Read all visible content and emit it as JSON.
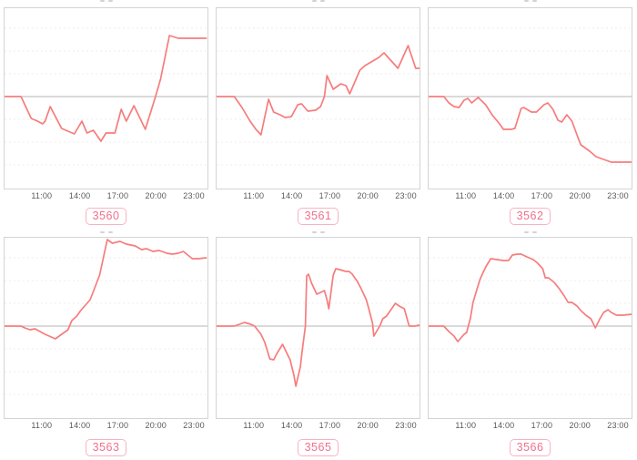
{
  "page": {
    "background": "#ffffff"
  },
  "colors": {
    "line": "#f77c7c",
    "zero_line": "#b5b5b5",
    "grid_line": "#ededed",
    "plot_border": "#d4d4d4",
    "tick_text": "#595959",
    "badge_text": "#f0708c",
    "badge_border": "#f8b3c3"
  },
  "axis": {
    "x_tick_labels": [
      "11:00",
      "14:00",
      "17:00",
      "20:00",
      "23:00"
    ],
    "x_range_hours": [
      8,
      24
    ],
    "y_axis": "unlabeled, zero baseline line shown, values in relative units"
  },
  "chart_data": [
    {
      "type": "line",
      "label": "3560",
      "x_tick_labels": [
        "11:00",
        "14:00",
        "17:00",
        "20:00",
        "23:00"
      ],
      "x_range_hours": [
        8,
        24
      ],
      "baseline": 0,
      "y_unit": "relative (axis unlabeled)",
      "points": [
        [
          8.0,
          0
        ],
        [
          9.3,
          0
        ],
        [
          10.1,
          -24
        ],
        [
          10.6,
          -27
        ],
        [
          11.0,
          -30
        ],
        [
          11.2,
          -27
        ],
        [
          11.6,
          -11
        ],
        [
          12.5,
          -35
        ],
        [
          13.0,
          -38
        ],
        [
          13.5,
          -41
        ],
        [
          14.1,
          -27
        ],
        [
          14.5,
          -40
        ],
        [
          15.0,
          -37
        ],
        [
          15.6,
          -49
        ],
        [
          16.0,
          -40
        ],
        [
          16.7,
          -40
        ],
        [
          17.2,
          -14
        ],
        [
          17.6,
          -27
        ],
        [
          18.2,
          -10
        ],
        [
          19.1,
          -36
        ],
        [
          19.9,
          0
        ],
        [
          20.3,
          19
        ],
        [
          21.0,
          67
        ],
        [
          21.7,
          64
        ],
        [
          22.9,
          64
        ],
        [
          23.9,
          64
        ]
      ]
    },
    {
      "type": "line",
      "label": "3561",
      "x_tick_labels": [
        "11:00",
        "14:00",
        "17:00",
        "20:00",
        "23:00"
      ],
      "x_range_hours": [
        8,
        24
      ],
      "baseline": 0,
      "y_unit": "relative (axis unlabeled)",
      "points": [
        [
          8.0,
          0
        ],
        [
          9.4,
          0
        ],
        [
          10.0,
          -12
        ],
        [
          10.6,
          -26
        ],
        [
          11.1,
          -36
        ],
        [
          11.5,
          -42
        ],
        [
          12.1,
          -3
        ],
        [
          12.5,
          -17
        ],
        [
          13.0,
          -20
        ],
        [
          13.4,
          -23
        ],
        [
          13.9,
          -22
        ],
        [
          14.4,
          -9
        ],
        [
          14.7,
          -8
        ],
        [
          15.2,
          -16
        ],
        [
          15.8,
          -15
        ],
        [
          16.2,
          -11
        ],
        [
          16.5,
          0
        ],
        [
          16.7,
          23
        ],
        [
          17.2,
          8
        ],
        [
          17.8,
          14
        ],
        [
          18.2,
          12
        ],
        [
          18.5,
          3
        ],
        [
          19.3,
          29
        ],
        [
          19.7,
          34
        ],
        [
          20.2,
          38
        ],
        [
          20.8,
          43
        ],
        [
          21.2,
          48
        ],
        [
          22.3,
          31
        ],
        [
          23.1,
          56
        ],
        [
          23.7,
          31
        ],
        [
          24.0,
          31
        ]
      ]
    },
    {
      "type": "line",
      "label": "3562",
      "x_tick_labels": [
        "11:00",
        "14:00",
        "17:00",
        "20:00",
        "23:00"
      ],
      "x_range_hours": [
        8,
        24
      ],
      "baseline": 0,
      "y_unit": "relative (axis unlabeled)",
      "points": [
        [
          8.0,
          0
        ],
        [
          9.2,
          0
        ],
        [
          9.6,
          -7
        ],
        [
          10.0,
          -11
        ],
        [
          10.4,
          -12
        ],
        [
          10.8,
          -4
        ],
        [
          11.1,
          -2
        ],
        [
          11.4,
          -7
        ],
        [
          11.9,
          -1
        ],
        [
          12.5,
          -9
        ],
        [
          13.0,
          -20
        ],
        [
          13.6,
          -30
        ],
        [
          13.9,
          -36
        ],
        [
          14.5,
          -36
        ],
        [
          14.8,
          -35
        ],
        [
          15.3,
          -13
        ],
        [
          15.5,
          -12
        ],
        [
          16.1,
          -17
        ],
        [
          16.5,
          -17
        ],
        [
          17.1,
          -9
        ],
        [
          17.4,
          -7
        ],
        [
          17.8,
          -14
        ],
        [
          18.2,
          -26
        ],
        [
          18.5,
          -28
        ],
        [
          18.9,
          -20
        ],
        [
          19.3,
          -27
        ],
        [
          19.8,
          -46
        ],
        [
          20.0,
          -53
        ],
        [
          20.7,
          -60
        ],
        [
          21.2,
          -66
        ],
        [
          21.8,
          -69
        ],
        [
          22.4,
          -72
        ],
        [
          23.1,
          -72
        ],
        [
          24.0,
          -72
        ]
      ]
    },
    {
      "type": "line",
      "label": "3563",
      "x_tick_labels": [
        "11:00",
        "14:00",
        "17:00",
        "20:00",
        "23:00"
      ],
      "x_range_hours": [
        8,
        24
      ],
      "baseline": 0,
      "y_unit": "relative (axis unlabeled)",
      "points": [
        [
          8.0,
          0
        ],
        [
          9.3,
          0
        ],
        [
          9.6,
          -2
        ],
        [
          10.0,
          -4
        ],
        [
          10.4,
          -3
        ],
        [
          11.2,
          -9
        ],
        [
          12.0,
          -14
        ],
        [
          13.0,
          -4
        ],
        [
          13.3,
          6
        ],
        [
          13.7,
          11
        ],
        [
          14.0,
          17
        ],
        [
          14.75,
          29
        ],
        [
          15.5,
          56
        ],
        [
          16.1,
          95
        ],
        [
          16.5,
          91
        ],
        [
          17.1,
          93
        ],
        [
          17.6,
          90
        ],
        [
          18.3,
          88
        ],
        [
          18.8,
          84
        ],
        [
          19.2,
          85
        ],
        [
          19.7,
          82
        ],
        [
          20.2,
          83
        ],
        [
          20.8,
          80
        ],
        [
          21.2,
          79
        ],
        [
          21.7,
          80
        ],
        [
          22.1,
          82
        ],
        [
          22.8,
          74
        ],
        [
          23.3,
          74
        ],
        [
          23.9,
          75
        ]
      ]
    },
    {
      "type": "line",
      "label": "3565",
      "x_tick_labels": [
        "11:00",
        "14:00",
        "17:00",
        "20:00",
        "23:00"
      ],
      "x_range_hours": [
        8,
        24
      ],
      "baseline": 0,
      "y_unit": "relative (axis unlabeled)",
      "points": [
        [
          8.0,
          0
        ],
        [
          9.4,
          0
        ],
        [
          10.0,
          3
        ],
        [
          10.2,
          4
        ],
        [
          10.7,
          2
        ],
        [
          11.0,
          0
        ],
        [
          11.5,
          -9
        ],
        [
          11.8,
          -18
        ],
        [
          12.2,
          -36
        ],
        [
          12.5,
          -37
        ],
        [
          12.8,
          -29
        ],
        [
          13.2,
          -20
        ],
        [
          13.8,
          -37
        ],
        [
          14.1,
          -54
        ],
        [
          14.25,
          -66
        ],
        [
          14.6,
          -45
        ],
        [
          14.75,
          -27
        ],
        [
          15.0,
          0
        ],
        [
          15.1,
          55
        ],
        [
          15.25,
          57
        ],
        [
          15.5,
          47
        ],
        [
          15.9,
          35
        ],
        [
          16.2,
          37
        ],
        [
          16.5,
          39
        ],
        [
          16.7,
          29
        ],
        [
          16.85,
          19
        ],
        [
          17.2,
          56
        ],
        [
          17.4,
          63
        ],
        [
          17.7,
          62
        ],
        [
          18.2,
          60
        ],
        [
          18.45,
          60
        ],
        [
          18.7,
          57
        ],
        [
          19.1,
          49
        ],
        [
          19.4,
          41
        ],
        [
          19.8,
          29
        ],
        [
          20.0,
          19
        ],
        [
          20.3,
          3
        ],
        [
          20.4,
          -11
        ],
        [
          20.9,
          1
        ],
        [
          21.1,
          8
        ],
        [
          21.4,
          11
        ],
        [
          21.8,
          19
        ],
        [
          22.1,
          25
        ],
        [
          22.4,
          22
        ],
        [
          22.8,
          19
        ],
        [
          23.1,
          4
        ],
        [
          23.2,
          0
        ],
        [
          23.6,
          0
        ],
        [
          24.0,
          1
        ]
      ]
    },
    {
      "type": "line",
      "label": "3566",
      "x_tick_labels": [
        "11:00",
        "14:00",
        "17:00",
        "20:00",
        "23:00"
      ],
      "x_range_hours": [
        8,
        24
      ],
      "baseline": 0,
      "y_unit": "relative (axis unlabeled)",
      "points": [
        [
          8.0,
          0
        ],
        [
          9.2,
          0
        ],
        [
          9.6,
          -6
        ],
        [
          10.0,
          -11
        ],
        [
          10.3,
          -17
        ],
        [
          10.8,
          -9
        ],
        [
          11.0,
          -7
        ],
        [
          11.3,
          9
        ],
        [
          11.5,
          26
        ],
        [
          11.8,
          40
        ],
        [
          12.05,
          51
        ],
        [
          12.3,
          59
        ],
        [
          12.55,
          66
        ],
        [
          12.9,
          74
        ],
        [
          13.4,
          73
        ],
        [
          13.9,
          72
        ],
        [
          14.3,
          72
        ],
        [
          14.6,
          78
        ],
        [
          15.0,
          79
        ],
        [
          15.3,
          79
        ],
        [
          15.75,
          76
        ],
        [
          16.25,
          73
        ],
        [
          16.6,
          69
        ],
        [
          17.0,
          63
        ],
        [
          17.2,
          53
        ],
        [
          17.45,
          53
        ],
        [
          17.9,
          48
        ],
        [
          18.3,
          41
        ],
        [
          18.7,
          33
        ],
        [
          19.0,
          26
        ],
        [
          19.3,
          26
        ],
        [
          19.7,
          22
        ],
        [
          20.0,
          17
        ],
        [
          20.4,
          12
        ],
        [
          20.8,
          8
        ],
        [
          21.15,
          -2
        ],
        [
          21.5,
          8
        ],
        [
          21.8,
          15
        ],
        [
          22.15,
          18
        ],
        [
          22.4,
          15
        ],
        [
          22.8,
          12
        ],
        [
          23.35,
          12
        ],
        [
          24.0,
          13
        ]
      ]
    }
  ]
}
